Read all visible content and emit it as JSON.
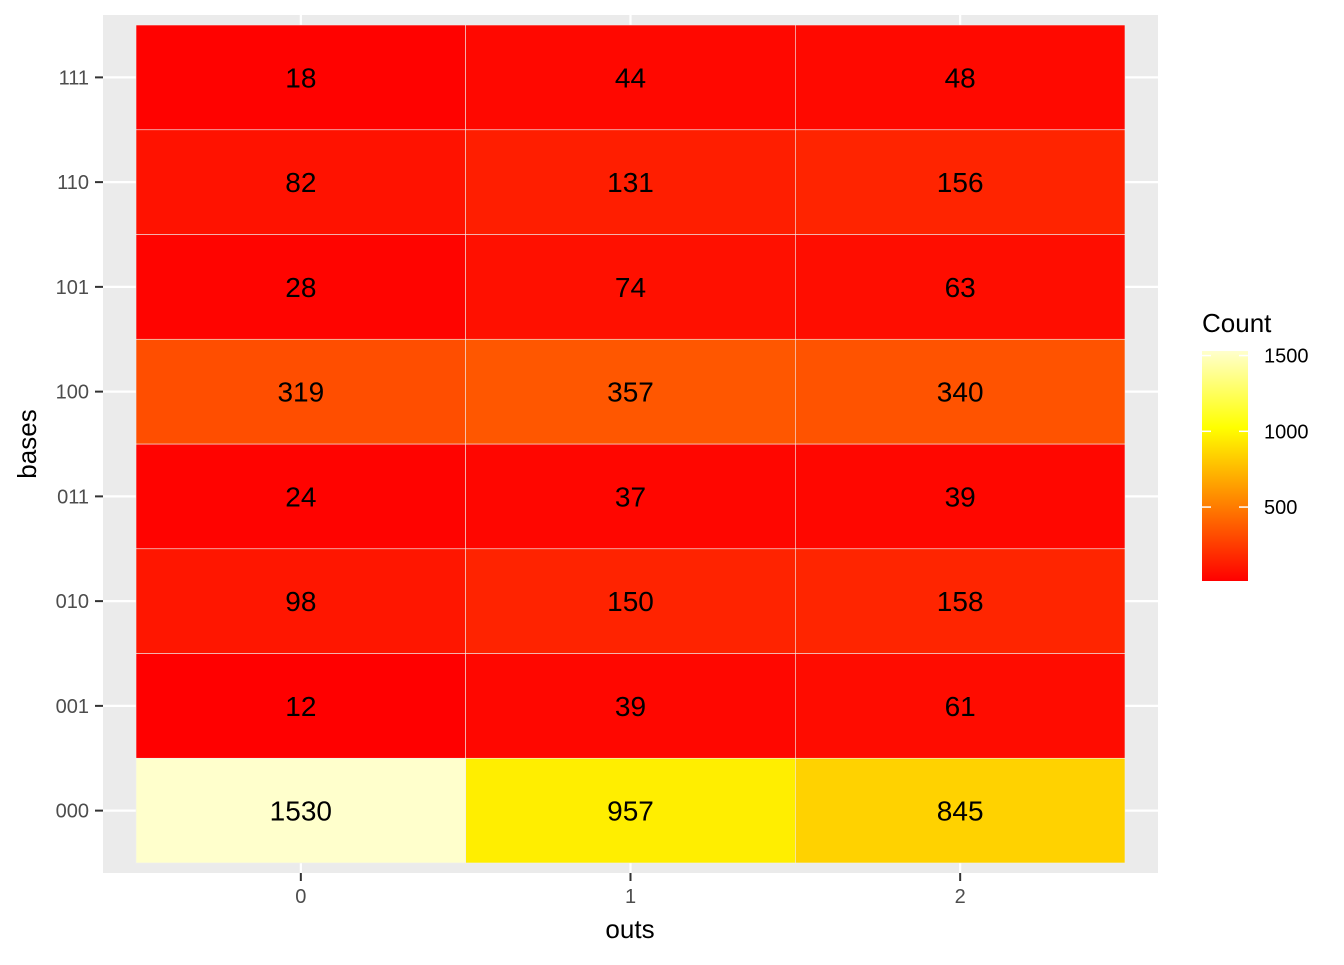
{
  "chart_data": {
    "type": "heatmap",
    "title": "",
    "xlabel": "outs",
    "ylabel": "bases",
    "x_categories": [
      "0",
      "1",
      "2"
    ],
    "y_categories": [
      "000",
      "001",
      "010",
      "011",
      "100",
      "101",
      "110",
      "111"
    ],
    "values": [
      [
        1530,
        957,
        845
      ],
      [
        12,
        39,
        61
      ],
      [
        98,
        150,
        158
      ],
      [
        24,
        37,
        39
      ],
      [
        319,
        357,
        340
      ],
      [
        28,
        74,
        63
      ],
      [
        82,
        131,
        156
      ],
      [
        18,
        44,
        48
      ]
    ],
    "legend": {
      "title": "Count",
      "position": "right",
      "ticks": [
        500,
        1000,
        1500
      ],
      "tick_labels": [
        "500",
        "1000",
        "1500"
      ],
      "range": [
        12,
        1530
      ],
      "colors": [
        "#FF0000",
        "#FF8000",
        "#FFFF00",
        "#FFFFCC"
      ]
    },
    "panel_background": "#EBEBEB",
    "grid": true
  }
}
